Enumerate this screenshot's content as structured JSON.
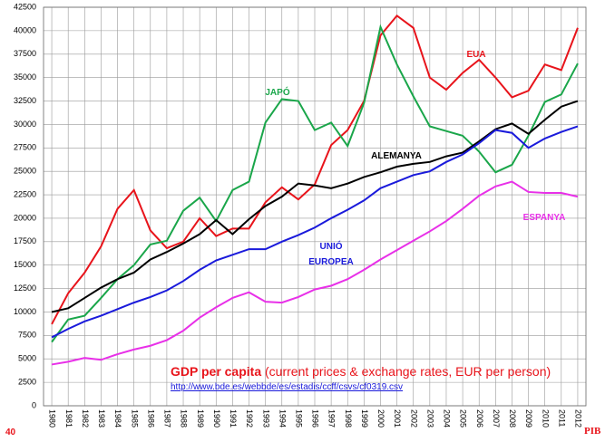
{
  "chart_data": {
    "type": "line",
    "title": "GDP per capita",
    "subtitle": "(current prices & exchange rates, EUR per  person)",
    "source_url": "http://www.bde.es/webbde/es/estadis/ccff/csvs/cf0319.csv",
    "page_number": "40",
    "footer": "PIB",
    "categories": [
      "1980",
      "1981",
      "1982",
      "1983",
      "1984",
      "1985",
      "1986",
      "1987",
      "1988",
      "1989",
      "1990",
      "1991",
      "1992",
      "1993",
      "1994",
      "1995",
      "1996",
      "1997",
      "1998",
      "1999",
      "2000",
      "2001",
      "2002",
      "2003",
      "2004",
      "2005",
      "2006",
      "2007",
      "2008",
      "2009",
      "2010",
      "2011",
      "2012"
    ],
    "ylim": [
      0,
      42500
    ],
    "yticks": [
      0,
      2500,
      5000,
      7500,
      10000,
      12500,
      15000,
      17500,
      20000,
      22500,
      25000,
      27500,
      30000,
      32500,
      35000,
      37500,
      40000,
      42500
    ],
    "grid": true,
    "series": [
      {
        "name": "EUA",
        "color": "#e8141b",
        "values": [
          8700,
          12000,
          14200,
          17000,
          21000,
          23000,
          18700,
          16800,
          17500,
          20000,
          18100,
          18900,
          18900,
          21700,
          23300,
          22000,
          23600,
          27800,
          29400,
          32500,
          39500,
          41600,
          40300,
          35000,
          33700,
          35500,
          36900,
          35000,
          32900,
          33600,
          36400,
          35800,
          40300
        ]
      },
      {
        "name": "JAPÓ",
        "color": "#1aa64a",
        "values": [
          6800,
          9200,
          9600,
          11500,
          13500,
          15000,
          17200,
          17600,
          20800,
          22200,
          19700,
          23000,
          23900,
          30200,
          32700,
          32500,
          29400,
          30200,
          27700,
          32300,
          40400,
          36400,
          33000,
          29800,
          29300,
          28800,
          27100,
          24900,
          25700,
          28800,
          32400,
          33200,
          36500
        ]
      },
      {
        "name": "ALEMANYA",
        "color": "#000000",
        "values": [
          10000,
          10400,
          11500,
          12600,
          13500,
          14200,
          15600,
          16400,
          17300,
          18300,
          19800,
          18300,
          19900,
          21300,
          22300,
          23700,
          23500,
          23200,
          23700,
          24400,
          24900,
          25500,
          25800,
          26000,
          26600,
          27000,
          28200,
          29500,
          30100,
          29000,
          30500,
          31900,
          32500
        ]
      },
      {
        "name": "UNIÓ EUROPEA",
        "color": "#1a1adb",
        "values": [
          7300,
          8200,
          9000,
          9600,
          10300,
          11000,
          11600,
          12300,
          13300,
          14500,
          15500,
          16100,
          16700,
          16700,
          17500,
          18200,
          19000,
          20000,
          20900,
          21900,
          23200,
          23900,
          24600,
          25000,
          26000,
          26800,
          28000,
          29400,
          29100,
          27500,
          28500,
          29200,
          29800
        ]
      },
      {
        "name": "ESPANYA",
        "color": "#e830e8",
        "values": [
          4400,
          4700,
          5100,
          4900,
          5500,
          6000,
          6400,
          7000,
          8000,
          9400,
          10500,
          11500,
          12100,
          11100,
          11000,
          11600,
          12400,
          12800,
          13500,
          14500,
          15600,
          16600,
          17600,
          18600,
          19700,
          21000,
          22400,
          23400,
          23900,
          22800,
          22700,
          22700,
          22300
        ]
      }
    ]
  }
}
